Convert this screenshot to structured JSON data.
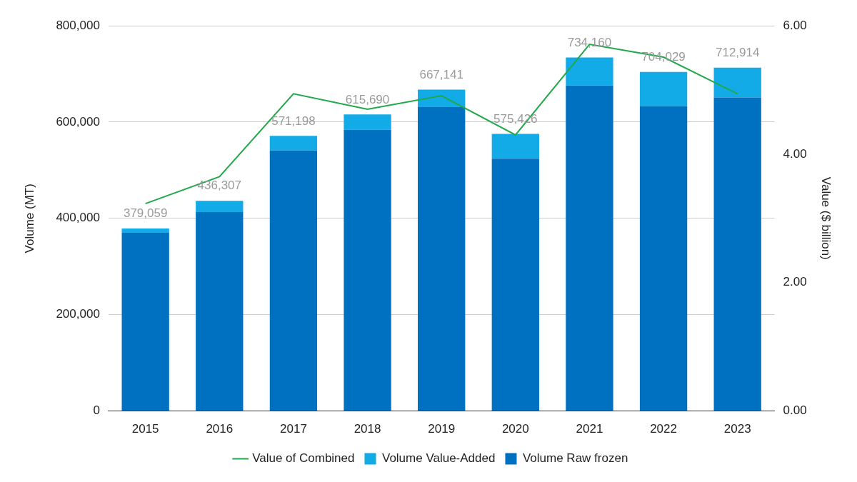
{
  "chart_data": {
    "type": "bar",
    "stacked": true,
    "categories": [
      "2015",
      "2016",
      "2017",
      "2018",
      "2019",
      "2020",
      "2021",
      "2022",
      "2023"
    ],
    "y_label": "Volume (MT)",
    "y2_label": "Value ($ billion)",
    "series": [
      {
        "name": "Value of Combined",
        "type": "line",
        "axis": "y2",
        "color": "#21a84a",
        "line_style": "solid",
        "values": [
          3.23,
          3.65,
          4.94,
          4.7,
          4.91,
          4.3,
          5.71,
          5.51,
          4.94
        ]
      },
      {
        "name": "Volume Value-Added",
        "type": "bar",
        "color": "#12abe8",
        "values": [
          9059,
          23307,
          30198,
          31690,
          36141,
          51426,
          58160,
          71029,
          61914
        ]
      },
      {
        "name": "Volume Raw frozen",
        "type": "bar",
        "color": "#0070c0",
        "values": [
          370000,
          413000,
          541000,
          584000,
          631000,
          524000,
          676000,
          633000,
          651000
        ]
      }
    ],
    "totals": [
      379059,
      436307,
      571198,
      615690,
      667141,
      575426,
      734160,
      704029,
      712914
    ],
    "total_labels": [
      "379,059",
      "436,307",
      "571,198",
      "615,690",
      "667,141",
      "575,426",
      "734,160",
      "704,029",
      "712,914"
    ],
    "ylim": [
      0,
      800000
    ],
    "yticks": [
      0,
      {
        "value": 200000,
        "label": "200,000"
      },
      {
        "value": 400000,
        "label": "400,000"
      },
      {
        "value": 600000,
        "label": "600,000"
      },
      {
        "value": 800000,
        "label": "800,000"
      }
    ],
    "y2lim": [
      0,
      6
    ],
    "y2ticks": [
      {
        "value": 0,
        "label": "0.00"
      },
      {
        "value": 2,
        "label": "2.00"
      },
      {
        "value": 4,
        "label": "4.00"
      },
      {
        "value": 6,
        "label": "6.00"
      }
    ],
    "grid": true,
    "legend": "bottom"
  }
}
